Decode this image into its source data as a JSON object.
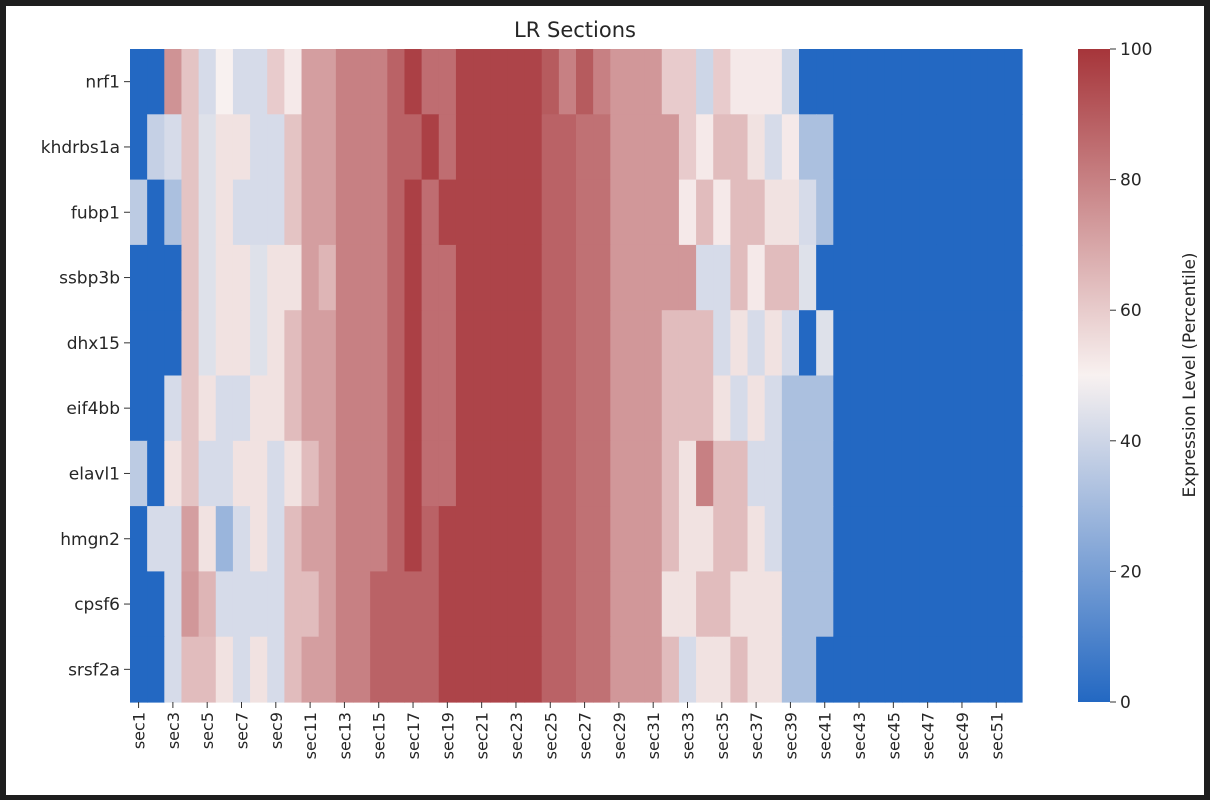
{
  "chart_data": {
    "type": "heatmap",
    "title": "LR Sections",
    "xlabel": "",
    "ylabel": "",
    "colorbar": {
      "label": "Expression Level (Percentile)",
      "range": [
        0,
        100
      ],
      "ticks": [
        0,
        20,
        40,
        60,
        80,
        100
      ],
      "colors": {
        "low": "#2368c2",
        "mid": "#f8f1f0",
        "high": "#a6353a"
      }
    },
    "x_labels": [
      "sec1",
      "sec3",
      "sec5",
      "sec7",
      "sec9",
      "sec11",
      "sec13",
      "sec15",
      "sec17",
      "sec19",
      "sec21",
      "sec23",
      "sec25",
      "sec27",
      "sec29",
      "sec31",
      "sec33",
      "sec35",
      "sec37",
      "sec39",
      "sec41",
      "sec43",
      "sec45",
      "sec47",
      "sec49",
      "sec51"
    ],
    "columns": [
      "sec1",
      "sec2",
      "sec3",
      "sec4",
      "sec5",
      "sec6",
      "sec7",
      "sec8",
      "sec9",
      "sec10",
      "sec11",
      "sec12",
      "sec13",
      "sec14",
      "sec15",
      "sec16",
      "sec17",
      "sec18",
      "sec19",
      "sec20",
      "sec21",
      "sec22",
      "sec23",
      "sec24",
      "sec25",
      "sec26",
      "sec27",
      "sec28",
      "sec29",
      "sec30",
      "sec31",
      "sec32",
      "sec33",
      "sec34",
      "sec35",
      "sec36",
      "sec37",
      "sec38",
      "sec39",
      "sec40",
      "sec41",
      "sec42",
      "sec43",
      "sec44",
      "sec45",
      "sec46",
      "sec47",
      "sec48",
      "sec49",
      "sec50",
      "sec51",
      "sec52"
    ],
    "rows": [
      "nrf1",
      "khdrbs1a",
      "fubp1",
      "ssbp3b",
      "dhx15",
      "eif4bb",
      "elavl1",
      "hmgn2",
      "cpsf6",
      "srsf2a"
    ],
    "values": [
      [
        0,
        0,
        75,
        62,
        42,
        50,
        42,
        42,
        60,
        52,
        72,
        72,
        80,
        80,
        80,
        88,
        97,
        85,
        85,
        96,
        96,
        96,
        96,
        96,
        90,
        80,
        90,
        80,
        74,
        74,
        74,
        60,
        60,
        40,
        60,
        52,
        52,
        52,
        40,
        0,
        0,
        0,
        0,
        0,
        0,
        0,
        0,
        0,
        0,
        0,
        0,
        0
      ],
      [
        0,
        38,
        42,
        62,
        44,
        54,
        54,
        42,
        42,
        62,
        72,
        72,
        80,
        80,
        80,
        88,
        88,
        97,
        85,
        96,
        96,
        96,
        96,
        96,
        88,
        88,
        84,
        84,
        74,
        74,
        74,
        74,
        60,
        52,
        64,
        64,
        54,
        42,
        52,
        32,
        32,
        0,
        0,
        0,
        0,
        0,
        0,
        0,
        0,
        0,
        0,
        0
      ],
      [
        36,
        0,
        32,
        62,
        44,
        54,
        42,
        42,
        42,
        62,
        72,
        72,
        80,
        80,
        80,
        88,
        97,
        85,
        96,
        96,
        96,
        96,
        96,
        96,
        88,
        88,
        84,
        84,
        74,
        74,
        74,
        74,
        52,
        64,
        52,
        64,
        64,
        54,
        54,
        42,
        32,
        0,
        0,
        0,
        0,
        0,
        0,
        0,
        0,
        0,
        0,
        0
      ],
      [
        0,
        0,
        0,
        62,
        44,
        54,
        54,
        44,
        54,
        54,
        72,
        66,
        80,
        80,
        80,
        88,
        97,
        85,
        85,
        96,
        96,
        96,
        96,
        96,
        88,
        88,
        84,
        84,
        74,
        74,
        74,
        74,
        74,
        42,
        42,
        64,
        52,
        64,
        64,
        44,
        0,
        0,
        0,
        0,
        0,
        0,
        0,
        0,
        0,
        0,
        0,
        0
      ],
      [
        0,
        0,
        0,
        62,
        44,
        54,
        54,
        44,
        54,
        64,
        72,
        72,
        80,
        80,
        80,
        88,
        97,
        85,
        85,
        96,
        96,
        96,
        96,
        96,
        88,
        88,
        84,
        84,
        74,
        74,
        74,
        64,
        64,
        64,
        42,
        54,
        42,
        54,
        42,
        0,
        44,
        0,
        0,
        0,
        0,
        0,
        0,
        0,
        0,
        0,
        0,
        0
      ],
      [
        0,
        0,
        42,
        62,
        54,
        42,
        42,
        54,
        54,
        64,
        72,
        72,
        80,
        80,
        80,
        88,
        97,
        85,
        85,
        96,
        96,
        96,
        96,
        96,
        88,
        88,
        84,
        84,
        74,
        74,
        74,
        64,
        64,
        64,
        54,
        42,
        54,
        42,
        32,
        32,
        32,
        0,
        0,
        0,
        0,
        0,
        0,
        0,
        0,
        0,
        0,
        0
      ],
      [
        36,
        0,
        54,
        62,
        42,
        42,
        54,
        54,
        42,
        54,
        64,
        72,
        80,
        80,
        80,
        88,
        97,
        85,
        85,
        96,
        96,
        96,
        96,
        96,
        88,
        88,
        84,
        84,
        74,
        74,
        74,
        64,
        54,
        80,
        64,
        64,
        42,
        42,
        32,
        32,
        32,
        0,
        0,
        0,
        0,
        0,
        0,
        0,
        0,
        0,
        0,
        0
      ],
      [
        0,
        42,
        42,
        72,
        54,
        28,
        42,
        54,
        42,
        64,
        72,
        72,
        80,
        80,
        80,
        88,
        97,
        88,
        96,
        96,
        96,
        96,
        96,
        96,
        88,
        88,
        84,
        84,
        74,
        74,
        74,
        64,
        54,
        54,
        64,
        64,
        54,
        42,
        32,
        32,
        32,
        0,
        0,
        0,
        0,
        0,
        0,
        0,
        0,
        0,
        0,
        0
      ],
      [
        0,
        0,
        42,
        74,
        66,
        42,
        42,
        42,
        42,
        64,
        64,
        72,
        80,
        80,
        88,
        88,
        88,
        88,
        96,
        96,
        96,
        96,
        96,
        96,
        88,
        88,
        84,
        84,
        74,
        74,
        74,
        54,
        54,
        64,
        64,
        54,
        54,
        54,
        32,
        32,
        32,
        0,
        0,
        0,
        0,
        0,
        0,
        0,
        0,
        0,
        0,
        0
      ],
      [
        0,
        0,
        42,
        64,
        64,
        54,
        42,
        54,
        42,
        64,
        72,
        72,
        80,
        80,
        88,
        88,
        88,
        88,
        96,
        96,
        96,
        96,
        96,
        96,
        88,
        88,
        84,
        84,
        74,
        74,
        74,
        64,
        42,
        54,
        54,
        64,
        54,
        54,
        32,
        32,
        0,
        0,
        0,
        0,
        0,
        0,
        0,
        0,
        0,
        0,
        0,
        0
      ]
    ]
  }
}
